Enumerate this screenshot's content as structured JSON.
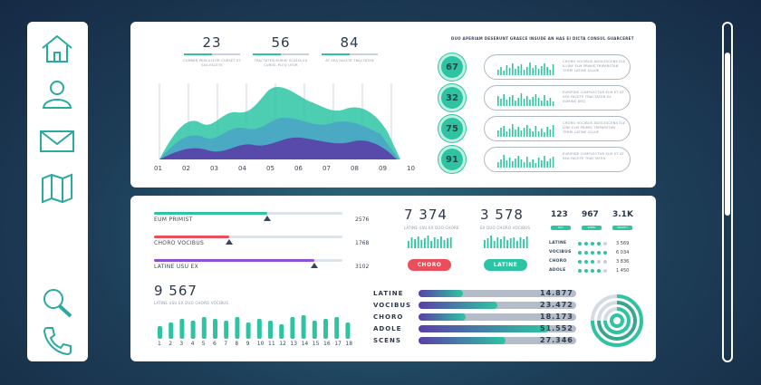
{
  "sidebar": {
    "items": [
      {
        "name": "home-icon"
      },
      {
        "name": "user-icon"
      },
      {
        "name": "mail-icon"
      },
      {
        "name": "map-icon"
      },
      {
        "name": "search-icon"
      },
      {
        "name": "phone-icon"
      }
    ]
  },
  "top": {
    "stats": [
      {
        "value": "23",
        "caption": "CUMMIN PERCULFOR CURSET ST SEA FACETE"
      },
      {
        "value": "56",
        "caption": "TRACTATEN BURSE SCAFIA EX CURIEL PLEQ UTUR"
      },
      {
        "value": "84",
        "caption": "AT SEA FACETE TRACTATEN"
      }
    ],
    "area_chart": {
      "x_labels": [
        "01",
        "02",
        "03",
        "04",
        "05",
        "06",
        "07",
        "08",
        "09",
        "10"
      ],
      "colors": [
        "#2ec4a3",
        "#4aa3c7",
        "#5a3fa8"
      ]
    },
    "header": "DUO APERIAM DESERUNT GRAECE INSUDE AN HAS EI DICTA CONSUL GUARCERET",
    "gauges": [
      {
        "value": "67",
        "text": "CHORO VOCIBUS ADOLESCENS ELE ILLINE ELM PRIMIS TRIPARSTAN TERRI LATINE ULLUE"
      },
      {
        "value": "32",
        "text": "EURIPIDE CUMPLECTUR ELM ET AT SEA FACETE TRACTATEN EX SUMINE DEQ"
      },
      {
        "value": "75",
        "text": "CHORO VOCIBUS ADOLESCENS ELE LINE ELM PRIMIS TRIPARSTAN TERRI LATINE ULLUE"
      },
      {
        "value": "91",
        "text": "EURIPIDE CUMPLECTUR ELM ET AT SEA FACETE TRACTATEN"
      }
    ]
  },
  "bottom": {
    "sliders": [
      {
        "label": "EUM PRIMIST",
        "value": "2576",
        "level": 0.6,
        "color": "#2ec4a3"
      },
      {
        "label": "CHORO VOCIBUS",
        "value": "1768",
        "level": 0.4,
        "color": "#e94e5a"
      },
      {
        "label": "LATINE USU EX",
        "value": "3102",
        "level": 0.85,
        "color": "#8e4fd1"
      }
    ],
    "big_number": "9 567",
    "big_caption": "LATINE USU EX DUO CHORO VOCIBUS",
    "bar_labels": [
      "1",
      "2",
      "3",
      "4",
      "5",
      "6",
      "7",
      "8",
      "9",
      "10",
      "11",
      "12",
      "13",
      "14",
      "15",
      "16",
      "17",
      "18"
    ],
    "counters": [
      {
        "value": "7 374",
        "caption": "LATINE USU EX DUO CHORE",
        "button": "CHORO",
        "color": "#e94e5a"
      },
      {
        "value": "3 578",
        "caption": "EX DUO CHORO VOCIBUS",
        "button": "LATINE",
        "color": "#2ec4a3"
      }
    ],
    "chips": [
      {
        "value": "123",
        "label": "DAY"
      },
      {
        "value": "967",
        "label": "WEEK"
      },
      {
        "value": "3.1K",
        "label": "MONTH"
      }
    ],
    "dot_rows": [
      {
        "label": "LATINE",
        "value": "3 569"
      },
      {
        "label": "VOCIBUS",
        "value": "6 034"
      },
      {
        "label": "CHORO",
        "value": "3 836"
      },
      {
        "label": "ADOLE",
        "value": "1 450"
      }
    ],
    "hbars": [
      {
        "label": "LATINE",
        "value": "14.877",
        "level": 0.28
      },
      {
        "label": "VOCIBUS",
        "value": "23.472",
        "level": 0.5
      },
      {
        "label": "CHORO",
        "value": "18.173",
        "level": 0.3
      },
      {
        "label": "ADOLE",
        "value": "51.552",
        "level": 0.82
      },
      {
        "label": "SCENS",
        "value": "27.346",
        "level": 0.55
      }
    ]
  }
}
